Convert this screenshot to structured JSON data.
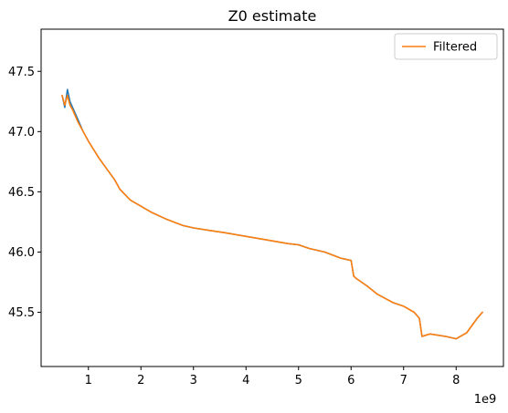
{
  "chart_data": {
    "type": "line",
    "title": "Z0 estimate",
    "xlabel": "",
    "ylabel": "",
    "x_offset_label": "1e9",
    "xlim": [
      100000000.0,
      8900000000.0
    ],
    "ylim": [
      45.05,
      47.85
    ],
    "x_ticks": [
      1000000000.0,
      2000000000.0,
      3000000000.0,
      4000000000.0,
      5000000000.0,
      6000000000.0,
      7000000000.0,
      8000000000.0
    ],
    "x_tick_labels": [
      "1",
      "2",
      "3",
      "4",
      "5",
      "6",
      "7",
      "8"
    ],
    "y_ticks": [
      45.5,
      46.0,
      46.5,
      47.0,
      47.5
    ],
    "y_tick_labels": [
      "45.5",
      "46.0",
      "46.5",
      "47.0",
      "47.5"
    ],
    "grid": false,
    "legend": {
      "placement": "top-right",
      "entries": [
        "Filtered"
      ]
    },
    "series": [
      {
        "color": "#1f77b4",
        "x": [
          500000000.0,
          550000000.0,
          600000000.0,
          650000000.0,
          700000000.0,
          800000000.0,
          900000000.0,
          1000000000.0,
          1100000000.0,
          1200000000.0,
          1300000000.0,
          1400000000.0,
          1500000000.0,
          1600000000.0,
          1800000000.0,
          2000000000.0,
          2200000000.0,
          2500000000.0,
          2800000000.0,
          3000000000.0,
          3300000000.0,
          3600000000.0,
          4000000000.0,
          4400000000.0,
          4800000000.0,
          5000000000.0,
          5200000000.0,
          5500000000.0,
          5800000000.0,
          6000000000.0,
          6050000000.0,
          6100000000.0,
          6300000000.0,
          6500000000.0,
          6800000000.0,
          7000000000.0,
          7200000000.0,
          7300000000.0,
          7350000000.0,
          7500000000.0,
          7800000000.0,
          8000000000.0,
          8200000000.0,
          8400000000.0,
          8500000000.0
        ],
        "values": [
          47.3,
          47.2,
          47.35,
          47.25,
          47.2,
          47.1,
          47.0,
          46.92,
          46.85,
          46.78,
          46.72,
          46.66,
          46.6,
          46.52,
          46.43,
          46.38,
          46.33,
          46.27,
          46.22,
          46.2,
          46.18,
          46.16,
          46.13,
          46.1,
          46.07,
          46.06,
          46.03,
          46.0,
          45.95,
          45.93,
          45.8,
          45.78,
          45.72,
          45.65,
          45.58,
          45.55,
          45.5,
          45.45,
          45.3,
          45.32,
          45.3,
          45.28,
          45.33,
          45.45,
          45.5
        ]
      },
      {
        "name": "Filtered",
        "color": "#ff7f0e",
        "x": [
          500000000.0,
          550000000.0,
          600000000.0,
          650000000.0,
          700000000.0,
          800000000.0,
          900000000.0,
          1000000000.0,
          1100000000.0,
          1200000000.0,
          1300000000.0,
          1400000000.0,
          1500000000.0,
          1600000000.0,
          1800000000.0,
          2000000000.0,
          2200000000.0,
          2500000000.0,
          2800000000.0,
          3000000000.0,
          3300000000.0,
          3600000000.0,
          4000000000.0,
          4400000000.0,
          4800000000.0,
          5000000000.0,
          5200000000.0,
          5500000000.0,
          5800000000.0,
          6000000000.0,
          6050000000.0,
          6100000000.0,
          6300000000.0,
          6500000000.0,
          6800000000.0,
          7000000000.0,
          7200000000.0,
          7300000000.0,
          7350000000.0,
          7500000000.0,
          7800000000.0,
          8000000000.0,
          8200000000.0,
          8400000000.0,
          8500000000.0
        ],
        "values": [
          47.3,
          47.22,
          47.3,
          47.22,
          47.18,
          47.08,
          47.0,
          46.92,
          46.85,
          46.78,
          46.72,
          46.66,
          46.6,
          46.52,
          46.43,
          46.38,
          46.33,
          46.27,
          46.22,
          46.2,
          46.18,
          46.16,
          46.13,
          46.1,
          46.07,
          46.06,
          46.03,
          46.0,
          45.95,
          45.93,
          45.8,
          45.78,
          45.72,
          45.65,
          45.58,
          45.55,
          45.5,
          45.45,
          45.3,
          45.32,
          45.3,
          45.28,
          45.33,
          45.45,
          45.5
        ]
      }
    ]
  }
}
